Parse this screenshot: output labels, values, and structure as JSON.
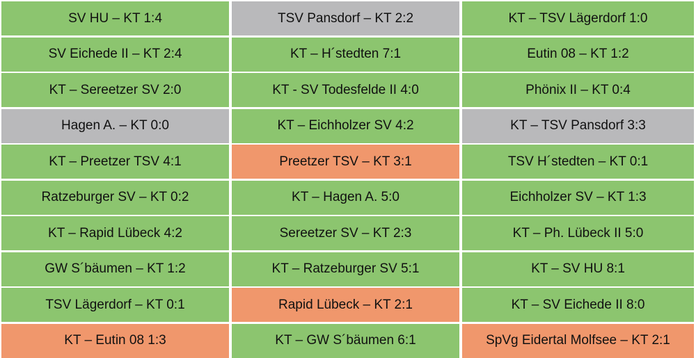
{
  "colors": {
    "win": "#8cc56f",
    "draw": "#b9b9bb",
    "loss": "#f0976c"
  },
  "cells": [
    {
      "text": "SV HU – KT 1:4",
      "result": "win"
    },
    {
      "text": "TSV Pansdorf – KT 2:2",
      "result": "draw"
    },
    {
      "text": "KT – TSV Lägerdorf 1:0",
      "result": "win"
    },
    {
      "text": "SV Eichede II – KT 2:4",
      "result": "win"
    },
    {
      "text": "KT – H´stedten 7:1",
      "result": "win"
    },
    {
      "text": "Eutin 08 – KT 1:2",
      "result": "win"
    },
    {
      "text": "KT – Sereetzer SV 2:0",
      "result": "win"
    },
    {
      "text": "KT - SV Todesfelde II 4:0",
      "result": "win"
    },
    {
      "text": "Phönix II – KT 0:4",
      "result": "win"
    },
    {
      "text": "Hagen A. – KT 0:0",
      "result": "draw"
    },
    {
      "text": "KT – Eichholzer SV 4:2",
      "result": "win"
    },
    {
      "text": "KT – TSV Pansdorf 3:3",
      "result": "draw"
    },
    {
      "text": "KT – Preetzer TSV 4:1",
      "result": "win"
    },
    {
      "text": "Preetzer TSV – KT 3:1",
      "result": "loss"
    },
    {
      "text": "TSV H´stedten – KT 0:1",
      "result": "win"
    },
    {
      "text": "Ratzeburger SV – KT 0:2",
      "result": "win"
    },
    {
      "text": "KT – Hagen A. 5:0",
      "result": "win"
    },
    {
      "text": "Eichholzer SV – KT 1:3",
      "result": "win"
    },
    {
      "text": "KT – Rapid Lübeck 4:2",
      "result": "win"
    },
    {
      "text": "Sereetzer SV – KT 2:3",
      "result": "win"
    },
    {
      "text": "KT – Ph. Lübeck II 5:0",
      "result": "win"
    },
    {
      "text": "GW S´bäumen – KT 1:2",
      "result": "win"
    },
    {
      "text": "KT – Ratzeburger SV 5:1",
      "result": "win"
    },
    {
      "text": "KT – SV HU 8:1",
      "result": "win"
    },
    {
      "text": "TSV Lägerdorf – KT 0:1",
      "result": "win"
    },
    {
      "text": "Rapid Lübeck – KT 2:1",
      "result": "loss"
    },
    {
      "text": "KT – SV Eichede II 8:0",
      "result": "win"
    },
    {
      "text": "KT – Eutin 08 1:3",
      "result": "loss"
    },
    {
      "text": "KT – GW S´bäumen 6:1",
      "result": "win"
    },
    {
      "text": "SpVg Eidertal Molfsee – KT 2:1",
      "result": "loss"
    }
  ]
}
